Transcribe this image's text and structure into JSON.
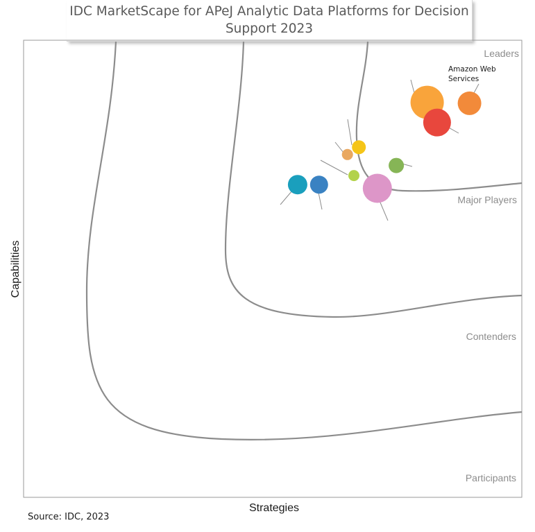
{
  "chart_data": {
    "type": "scatter",
    "title": "IDC MarketScape for APeJ Analytic Data Platforms for Decision Support 2023",
    "xlabel": "Strategies",
    "ylabel": "Capabilities",
    "xlim": [
      0,
      100
    ],
    "ylim": [
      0,
      100
    ],
    "zones": [
      "Leaders",
      "Major Players",
      "Contenders",
      "Participants"
    ],
    "points": [
      {
        "label": "",
        "x": 81.0,
        "y": 86.4,
        "size": 24,
        "color": "#f9a43b"
      },
      {
        "label": "Amazon Web Services",
        "x": 89.5,
        "y": 86.2,
        "size": 17,
        "color": "#f28a3a"
      },
      {
        "label": "",
        "x": 83.0,
        "y": 82.0,
        "size": 20,
        "color": "#e8473d"
      },
      {
        "label": "",
        "x": 67.3,
        "y": 76.6,
        "size": 10,
        "color": "#f5c518"
      },
      {
        "label": "",
        "x": 65.0,
        "y": 75.0,
        "size": 8,
        "color": "#e9a860"
      },
      {
        "label": "",
        "x": 74.8,
        "y": 72.6,
        "size": 11,
        "color": "#86b556"
      },
      {
        "label": "",
        "x": 66.3,
        "y": 70.4,
        "size": 8,
        "color": "#b3d24a"
      },
      {
        "label": "",
        "x": 55.0,
        "y": 68.4,
        "size": 14,
        "color": "#1a9fbd"
      },
      {
        "label": "",
        "x": 59.3,
        "y": 68.4,
        "size": 13,
        "color": "#3a82c2"
      },
      {
        "label": "",
        "x": 71.0,
        "y": 67.6,
        "size": 21,
        "color": "#dd96c8"
      }
    ]
  },
  "source": "Source: IDC, 2023"
}
